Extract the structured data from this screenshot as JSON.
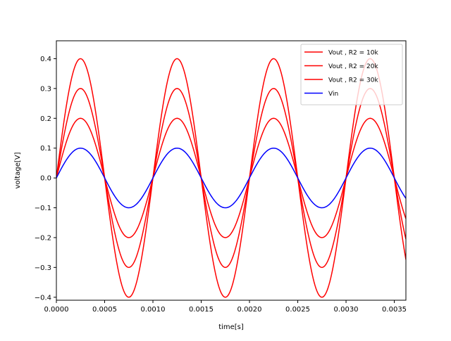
{
  "chart_data": {
    "type": "line",
    "title": "",
    "xlabel": "time[s]",
    "ylabel": "voltage[V]",
    "xlim": [
      0,
      0.00362
    ],
    "ylim": [
      -0.41,
      0.46
    ],
    "grid": false,
    "legend_position": "top-right",
    "x_ticks": [
      0.0,
      0.0005,
      0.001,
      0.0015,
      0.002,
      0.0025,
      0.003,
      0.0035
    ],
    "x_tick_labels": [
      "0.0000",
      "0.0005",
      "0.0010",
      "0.0015",
      "0.0020",
      "0.0025",
      "0.0030",
      "0.0035"
    ],
    "y_ticks": [
      -0.4,
      -0.3,
      -0.2,
      -0.1,
      0.0,
      0.1,
      0.2,
      0.3,
      0.4
    ],
    "y_tick_labels": [
      "−0.4",
      "−0.3",
      "−0.2",
      "−0.1",
      "0.0",
      "0.1",
      "0.2",
      "0.3",
      "0.4"
    ],
    "frequency_hz": 1000,
    "series": [
      {
        "name": "Vout , R2 = 10k",
        "color": "#ff0000",
        "amplitude": 0.2
      },
      {
        "name": "Vout , R2 = 20k",
        "color": "#ff0000",
        "amplitude": 0.3
      },
      {
        "name": "Vout , R2 = 30k",
        "color": "#ff0000",
        "amplitude": 0.4
      },
      {
        "name": "Vin",
        "color": "#0000ff",
        "amplitude": 0.1
      }
    ]
  }
}
